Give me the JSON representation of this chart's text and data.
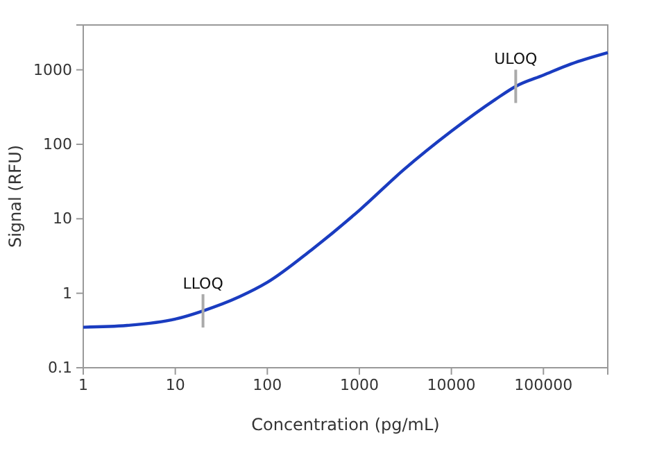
{
  "chart_data": {
    "type": "line",
    "xlabel": "Concentration (pg/mL)",
    "ylabel": "Signal (RFU)",
    "log": "xy",
    "grid": false,
    "xlim": [
      1,
      500000
    ],
    "xticks": [
      1,
      10,
      100,
      1000,
      10000,
      100000
    ],
    "ylim": [
      0.1,
      4000
    ],
    "yticks": [
      0.1,
      1,
      10,
      100,
      1000
    ],
    "series": [
      {
        "color": "#1a3cc0",
        "x": [
          1,
          3,
          10,
          20,
          50,
          100,
          300,
          1000,
          3000,
          10000,
          30000,
          50000,
          100000,
          200000,
          500000
        ],
        "values": [
          0.35,
          0.37,
          0.45,
          0.58,
          0.9,
          1.4,
          3.8,
          13,
          45,
          150,
          400,
          600,
          850,
          1200,
          1700
        ]
      }
    ],
    "annotations": [
      {
        "text": "LLOQ",
        "x": 20,
        "y": 0.58
      },
      {
        "text": "ULOQ",
        "x": 50000,
        "y": 600
      }
    ]
  }
}
